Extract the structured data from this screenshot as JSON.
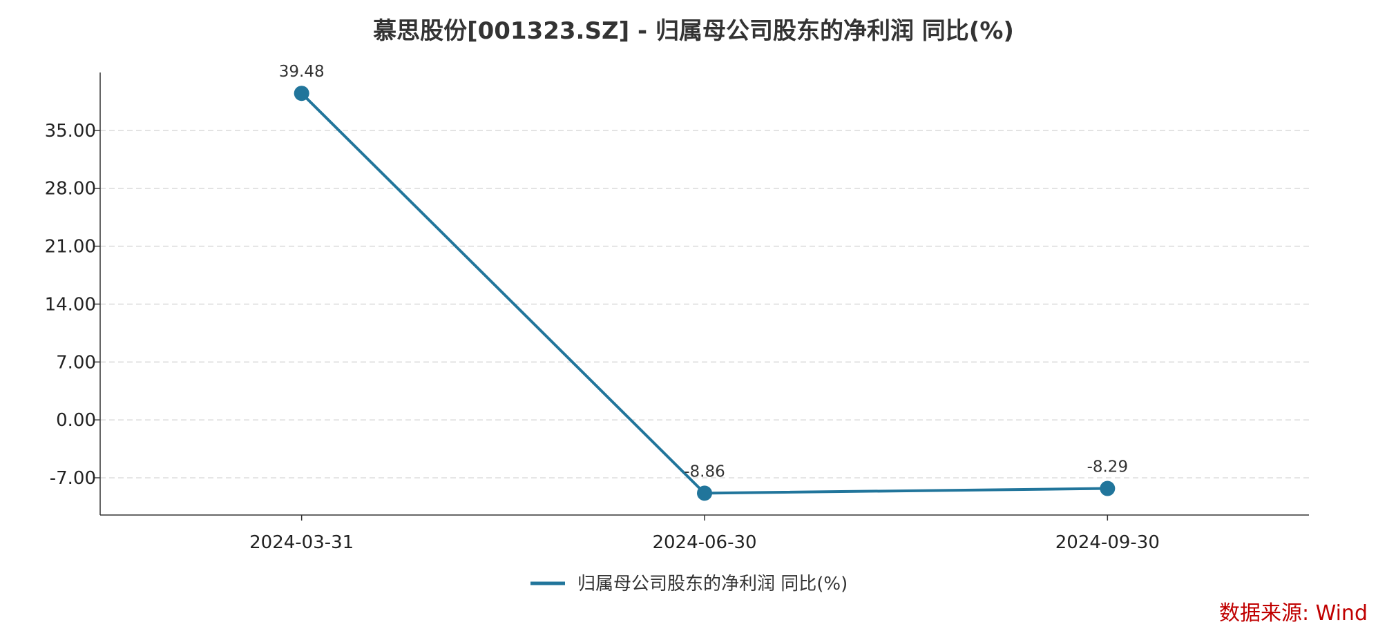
{
  "chart_data": {
    "type": "line",
    "title": "慕思股份[001323.SZ] - 归属母公司股东的净利润 同比(%)",
    "xlabel": "",
    "ylabel": "",
    "categories": [
      "2024-03-31",
      "2024-06-30",
      "2024-09-30"
    ],
    "series": [
      {
        "name": "归属母公司股东的净利润 同比(%)",
        "values": [
          39.48,
          -8.86,
          -8.29
        ],
        "value_labels": [
          "39.48",
          "-8.86",
          "-8.29"
        ],
        "color": "#21759b"
      }
    ],
    "yticks": [
      -7.0,
      0.0,
      7.0,
      14.0,
      21.0,
      28.0,
      35.0
    ],
    "ytick_labels": [
      "-7.00",
      "0.00",
      "7.00",
      "14.00",
      "21.00",
      "28.00",
      "35.00"
    ],
    "ylim": [
      -11.5,
      42.0
    ],
    "grid": true,
    "legend_position": "bottom-center",
    "source_note": "数据来源: Wind"
  }
}
